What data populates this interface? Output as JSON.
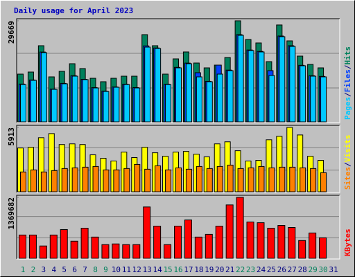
{
  "title": "Daily usage for April 2023",
  "separator": "/",
  "categories": [
    "1",
    "2",
    "3",
    "4",
    "5",
    "6",
    "7",
    "8",
    "9",
    "10",
    "11",
    "12",
    "13",
    "14",
    "15",
    "16",
    "17",
    "18",
    "19",
    "20",
    "21",
    "22",
    "23",
    "24",
    "25",
    "26",
    "27",
    "28",
    "29",
    "30",
    "31"
  ],
  "category_colors": [
    "#00805c",
    "#00805c",
    "#000080",
    "#000080",
    "#000080",
    "#000080",
    "#000080",
    "#00805c",
    "#00805c",
    "#000080",
    "#000080",
    "#000080",
    "#000080",
    "#000080",
    "#00805c",
    "#00805c",
    "#000080",
    "#000080",
    "#000080",
    "#000080",
    "#000080",
    "#00805c",
    "#00805c",
    "#000080",
    "#000080",
    "#000080",
    "#000080",
    "#000080",
    "#00805c",
    "#00805c",
    "#000080"
  ],
  "chart_data": [
    {
      "type": "bar",
      "ylim": [
        0,
        29669
      ],
      "yticks": [
        29669
      ],
      "series": [
        {
          "name": "Hits",
          "color": "#00805c",
          "values": [
            14021,
            14630,
            22352,
            13208,
            14834,
            17069,
            15647,
            12802,
            11786,
            12802,
            13411,
            13411,
            25604,
            22352,
            14021,
            18491,
            20524,
            17272,
            15850,
            16663,
            18898,
            29669,
            24181,
            23165,
            17679,
            28449,
            23775,
            19304,
            16866,
            15850,
            null
          ]
        },
        {
          "name": "Files",
          "color": "#0040ff",
          "values": [
            11100,
            12300,
            20500,
            9650,
            11300,
            13550,
            12500,
            10050,
            9050,
            10260,
            11080,
            10060,
            22300,
            21700,
            11080,
            16000,
            17250,
            14428,
            11900,
            16663,
            15200,
            25600,
            21100,
            20700,
            15038,
            25200,
            22350,
            16600,
            13550,
            13350,
            null
          ]
        },
        {
          "name": "Pages",
          "color": "#00c8ff",
          "values": [
            10973,
            12192,
            20321,
            9551,
            11176,
            13412,
            12396,
            9957,
            8941,
            10160,
            10973,
            9957,
            21947,
            21540,
            10973,
            15850,
            17070,
            13209,
            11786,
            14022,
            15038,
            25402,
            20931,
            20524,
            13615,
            24995,
            22150,
            16460,
            13412,
            13209,
            null
          ]
        }
      ]
    },
    {
      "type": "bar",
      "ylim": [
        0,
        5913
      ],
      "yticks": [
        5913
      ],
      "series": [
        {
          "name": "Visits",
          "color": "#ffff00",
          "values": [
            4026,
            4089,
            4969,
            5347,
            4340,
            4403,
            4340,
            3397,
            3082,
            2831,
            3648,
            3145,
            4089,
            3585,
            3271,
            3648,
            3711,
            3460,
            3208,
            4403,
            4592,
            3774,
            2831,
            2893,
            4780,
            5095,
            5913,
            5221,
            3271,
            2893,
            null
          ]
        },
        {
          "name": "Sites",
          "color": "#ff8000",
          "values": [
            1824,
            2013,
            1824,
            1950,
            2139,
            2202,
            2264,
            2327,
            2013,
            2013,
            2139,
            2516,
            2076,
            2390,
            2013,
            2202,
            2076,
            2327,
            2139,
            2327,
            2453,
            2139,
            2202,
            2327,
            2202,
            2264,
            2264,
            2202,
            2139,
            1761,
            null
          ]
        }
      ]
    },
    {
      "type": "bar",
      "ylim": [
        0,
        1369682
      ],
      "yticks": [
        1369682
      ],
      "series": [
        {
          "name": "KBytes",
          "color": "#ff0000",
          "values": [
            523260,
            523260,
            277020,
            523260,
            646380,
            384750,
            677160,
            477090,
            307800,
            323190,
            307800,
            307800,
            1154250,
            723330,
            307800,
            723330,
            861840,
            477090,
            538650,
            723330,
            1200420,
            1369682,
            815670,
            800280,
            677160,
            738720,
            692550,
            400140,
            569430,
            461700,
            null
          ]
        }
      ]
    }
  ]
}
